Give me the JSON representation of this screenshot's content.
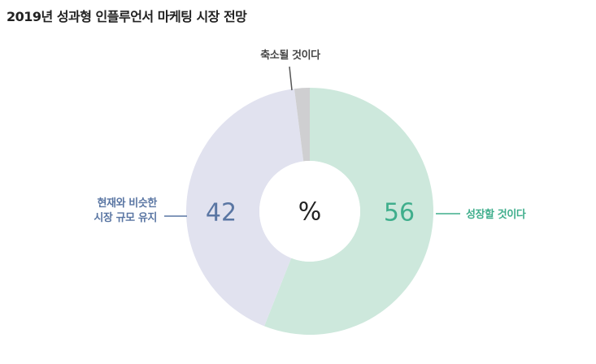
{
  "chart_data": {
    "type": "pie",
    "title": "2019년 성과형 인플루언서 마케팅 시장 전망",
    "center_label": "%",
    "hole": "donut",
    "start": "top",
    "direction": "clockwise",
    "slices": [
      {
        "key": "grow",
        "label": [
          "성장할 것이다"
        ],
        "value": 56,
        "value_shown": "56",
        "color": "#cde8dc",
        "text_color": "#3fae8c"
      },
      {
        "key": "same",
        "label": [
          "현재와 비슷한",
          "시장 규모 유지"
        ],
        "value": 42,
        "value_shown": "42",
        "color": "#e1e2ef",
        "text_color": "#5a76a3"
      },
      {
        "key": "shrink",
        "label": [
          "축소될 것이다"
        ],
        "value": 2,
        "value_shown": "",
        "color": "#cfcfd1",
        "text_color": "#444444"
      }
    ]
  }
}
